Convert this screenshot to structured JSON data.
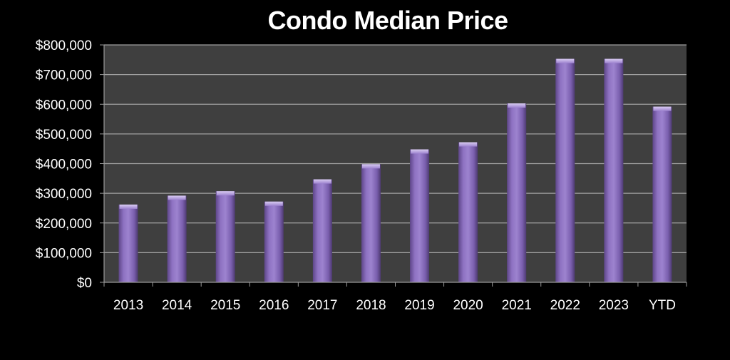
{
  "chart_data": {
    "type": "bar",
    "title": "Condo Median Price",
    "categories": [
      "2013",
      "2014",
      "2015",
      "2016",
      "2017",
      "2018",
      "2019",
      "2020",
      "2021",
      "2022",
      "2023",
      "YTD"
    ],
    "values": [
      262000,
      292000,
      307000,
      272000,
      347000,
      398000,
      448000,
      472000,
      603000,
      753000,
      753000,
      592000
    ],
    "ylim": [
      0,
      800000
    ],
    "yticks": [
      0,
      100000,
      200000,
      300000,
      400000,
      500000,
      600000,
      700000,
      800000
    ],
    "ytick_labels": [
      "$0",
      "$100,000",
      "$200,000",
      "$300,000",
      "$400,000",
      "$500,000",
      "$600,000",
      "$700,000",
      "$800,000"
    ],
    "grid": true,
    "colors": {
      "background": "#000000",
      "plot_area": "#3f3f3f",
      "bar": "#8b6fbf",
      "grid": "#a0a0a0",
      "text": "#ffffff"
    }
  }
}
